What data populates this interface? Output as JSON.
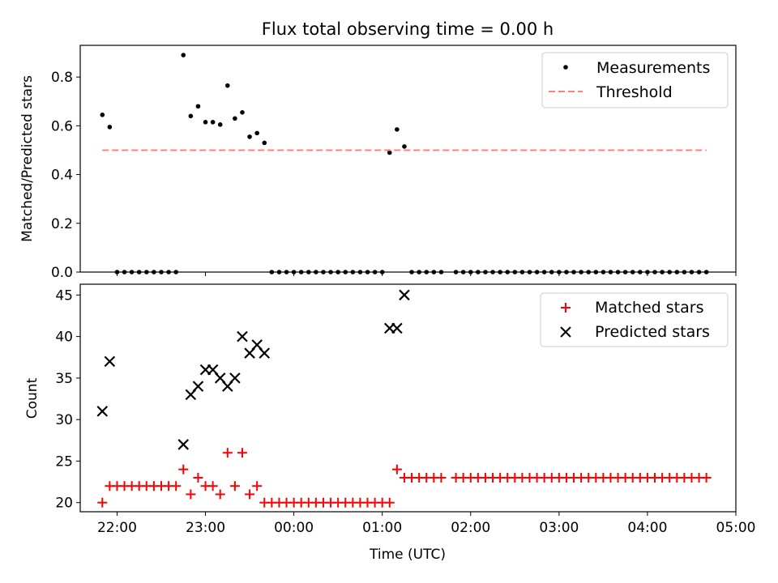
{
  "colors": {
    "measurement": "#000000",
    "threshold": "#ff7f7f",
    "matched": "#ff0000",
    "predicted": "#000000",
    "axes": "#000000",
    "legend_border": "#cccccc"
  },
  "chart_data": [
    {
      "type": "scatter",
      "title": "Flux total observing time = 0.00 h",
      "xlabel": "",
      "ylabel": "Matched/Predicted stars",
      "xlim": [
        "21:35",
        "05:00"
      ],
      "ylim": [
        0,
        0.93
      ],
      "y_ticks": [
        "0.0",
        "0.2",
        "0.4",
        "0.6",
        "0.8"
      ],
      "legend_position": "top-right",
      "series": [
        {
          "name": "Measurements",
          "marker": "dot",
          "points": [
            [
              "21:50",
              0.645
            ],
            [
              "21:55",
              0.595
            ],
            [
              "22:00",
              0.0
            ],
            [
              "22:05",
              0.0
            ],
            [
              "22:10",
              0.0
            ],
            [
              "22:15",
              0.0
            ],
            [
              "22:20",
              0.0
            ],
            [
              "22:25",
              0.0
            ],
            [
              "22:30",
              0.0
            ],
            [
              "22:35",
              0.0
            ],
            [
              "22:40",
              0.0
            ],
            [
              "22:45",
              0.89
            ],
            [
              "22:50",
              0.64
            ],
            [
              "22:55",
              0.68
            ],
            [
              "23:00",
              0.615
            ],
            [
              "23:05",
              0.615
            ],
            [
              "23:10",
              0.605
            ],
            [
              "23:15",
              0.765
            ],
            [
              "23:20",
              0.63
            ],
            [
              "23:25",
              0.655
            ],
            [
              "23:30",
              0.555
            ],
            [
              "23:35",
              0.57
            ],
            [
              "23:40",
              0.53
            ],
            [
              "23:45",
              0.0
            ],
            [
              "23:50",
              0.0
            ],
            [
              "23:55",
              0.0
            ],
            [
              "00:00",
              0.0
            ],
            [
              "00:05",
              0.0
            ],
            [
              "00:10",
              0.0
            ],
            [
              "00:15",
              0.0
            ],
            [
              "00:20",
              0.0
            ],
            [
              "00:25",
              0.0
            ],
            [
              "00:30",
              0.0
            ],
            [
              "00:35",
              0.0
            ],
            [
              "00:40",
              0.0
            ],
            [
              "00:45",
              0.0
            ],
            [
              "00:50",
              0.0
            ],
            [
              "00:55",
              0.0
            ],
            [
              "01:00",
              0.0
            ],
            [
              "01:05",
              0.49
            ],
            [
              "01:10",
              0.585
            ],
            [
              "01:15",
              0.515
            ],
            [
              "01:20",
              0.0
            ],
            [
              "01:25",
              0.0
            ],
            [
              "01:30",
              0.0
            ],
            [
              "01:35",
              0.0
            ],
            [
              "01:40",
              0.0
            ],
            [
              "01:50",
              0.0
            ],
            [
              "01:55",
              0.0
            ],
            [
              "02:00",
              0.0
            ],
            [
              "02:05",
              0.0
            ],
            [
              "02:10",
              0.0
            ],
            [
              "02:15",
              0.0
            ],
            [
              "02:20",
              0.0
            ],
            [
              "02:25",
              0.0
            ],
            [
              "02:30",
              0.0
            ],
            [
              "02:35",
              0.0
            ],
            [
              "02:40",
              0.0
            ],
            [
              "02:45",
              0.0
            ],
            [
              "02:50",
              0.0
            ],
            [
              "02:55",
              0.0
            ],
            [
              "03:00",
              0.0
            ],
            [
              "03:05",
              0.0
            ],
            [
              "03:10",
              0.0
            ],
            [
              "03:15",
              0.0
            ],
            [
              "03:20",
              0.0
            ],
            [
              "03:25",
              0.0
            ],
            [
              "03:30",
              0.0
            ],
            [
              "03:35",
              0.0
            ],
            [
              "03:40",
              0.0
            ],
            [
              "03:45",
              0.0
            ],
            [
              "03:50",
              0.0
            ],
            [
              "03:55",
              0.0
            ],
            [
              "04:00",
              0.0
            ],
            [
              "04:05",
              0.0
            ],
            [
              "04:10",
              0.0
            ],
            [
              "04:15",
              0.0
            ],
            [
              "04:20",
              0.0
            ],
            [
              "04:25",
              0.0
            ],
            [
              "04:30",
              0.0
            ],
            [
              "04:35",
              0.0
            ],
            [
              "04:40",
              0.0
            ]
          ]
        },
        {
          "name": "Threshold",
          "marker": "dashed-line",
          "points": [
            [
              "21:50",
              0.5
            ],
            [
              "04:40",
              0.5
            ]
          ]
        }
      ]
    },
    {
      "type": "scatter",
      "title": "",
      "xlabel": "Time (UTC)",
      "ylabel": "Count",
      "xlim": [
        "21:35",
        "05:00"
      ],
      "ylim": [
        18.9,
        46.3
      ],
      "x_ticks": [
        "22:00",
        "23:00",
        "00:00",
        "01:00",
        "02:00",
        "03:00",
        "04:00",
        "05:00"
      ],
      "y_ticks": [
        "20",
        "25",
        "30",
        "35",
        "40",
        "45"
      ],
      "legend_position": "top-right",
      "series": [
        {
          "name": "Matched stars",
          "marker": "plus",
          "points": [
            [
              "21:50",
              20
            ],
            [
              "21:55",
              22
            ],
            [
              "22:00",
              22
            ],
            [
              "22:05",
              22
            ],
            [
              "22:10",
              22
            ],
            [
              "22:15",
              22
            ],
            [
              "22:20",
              22
            ],
            [
              "22:25",
              22
            ],
            [
              "22:30",
              22
            ],
            [
              "22:35",
              22
            ],
            [
              "22:40",
              22
            ],
            [
              "22:45",
              24
            ],
            [
              "22:50",
              21
            ],
            [
              "22:55",
              23
            ],
            [
              "23:00",
              22
            ],
            [
              "23:05",
              22
            ],
            [
              "23:10",
              21
            ],
            [
              "23:15",
              26
            ],
            [
              "23:20",
              22
            ],
            [
              "23:25",
              26
            ],
            [
              "23:30",
              21
            ],
            [
              "23:35",
              22
            ],
            [
              "23:40",
              20
            ],
            [
              "23:45",
              20
            ],
            [
              "23:50",
              20
            ],
            [
              "23:55",
              20
            ],
            [
              "00:00",
              20
            ],
            [
              "00:05",
              20
            ],
            [
              "00:10",
              20
            ],
            [
              "00:15",
              20
            ],
            [
              "00:20",
              20
            ],
            [
              "00:25",
              20
            ],
            [
              "00:30",
              20
            ],
            [
              "00:35",
              20
            ],
            [
              "00:40",
              20
            ],
            [
              "00:45",
              20
            ],
            [
              "00:50",
              20
            ],
            [
              "00:55",
              20
            ],
            [
              "01:00",
              20
            ],
            [
              "01:05",
              20
            ],
            [
              "01:10",
              24
            ],
            [
              "01:15",
              23
            ],
            [
              "01:20",
              23
            ],
            [
              "01:25",
              23
            ],
            [
              "01:30",
              23
            ],
            [
              "01:35",
              23
            ],
            [
              "01:40",
              23
            ],
            [
              "01:50",
              23
            ],
            [
              "01:55",
              23
            ],
            [
              "02:00",
              23
            ],
            [
              "02:05",
              23
            ],
            [
              "02:10",
              23
            ],
            [
              "02:15",
              23
            ],
            [
              "02:20",
              23
            ],
            [
              "02:25",
              23
            ],
            [
              "02:30",
              23
            ],
            [
              "02:35",
              23
            ],
            [
              "02:40",
              23
            ],
            [
              "02:45",
              23
            ],
            [
              "02:50",
              23
            ],
            [
              "02:55",
              23
            ],
            [
              "03:00",
              23
            ],
            [
              "03:05",
              23
            ],
            [
              "03:10",
              23
            ],
            [
              "03:15",
              23
            ],
            [
              "03:20",
              23
            ],
            [
              "03:25",
              23
            ],
            [
              "03:30",
              23
            ],
            [
              "03:35",
              23
            ],
            [
              "03:40",
              23
            ],
            [
              "03:45",
              23
            ],
            [
              "03:50",
              23
            ],
            [
              "03:55",
              23
            ],
            [
              "04:00",
              23
            ],
            [
              "04:05",
              23
            ],
            [
              "04:10",
              23
            ],
            [
              "04:15",
              23
            ],
            [
              "04:20",
              23
            ],
            [
              "04:25",
              23
            ],
            [
              "04:30",
              23
            ],
            [
              "04:35",
              23
            ],
            [
              "04:40",
              23
            ]
          ]
        },
        {
          "name": "Predicted stars",
          "marker": "x",
          "points": [
            [
              "21:50",
              31
            ],
            [
              "21:55",
              37
            ],
            [
              "22:45",
              27
            ],
            [
              "22:50",
              33
            ],
            [
              "22:55",
              34
            ],
            [
              "23:00",
              36
            ],
            [
              "23:05",
              36
            ],
            [
              "23:10",
              35
            ],
            [
              "23:15",
              34
            ],
            [
              "23:20",
              35
            ],
            [
              "23:25",
              40
            ],
            [
              "23:30",
              38
            ],
            [
              "23:35",
              39
            ],
            [
              "23:40",
              38
            ],
            [
              "01:05",
              41
            ],
            [
              "01:10",
              41
            ],
            [
              "01:15",
              45
            ]
          ]
        }
      ]
    }
  ]
}
